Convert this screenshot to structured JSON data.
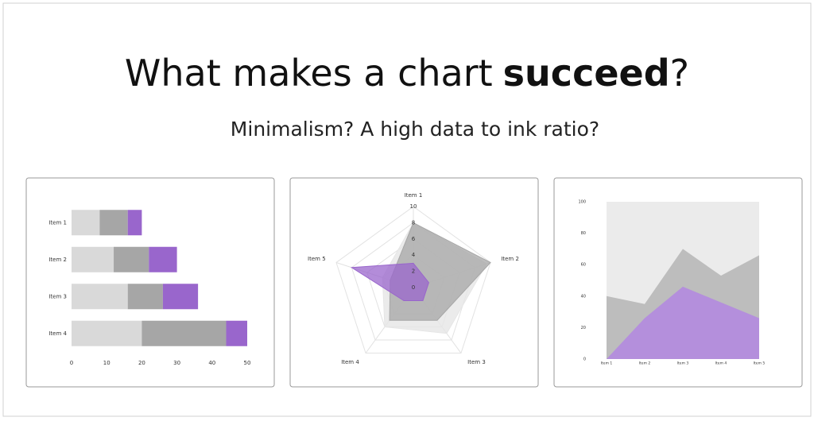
{
  "slide": {
    "title": [
      "What makes a chart",
      "succeed",
      "?"
    ],
    "subtitle": "Minimalism? A high data to ink ratio?"
  },
  "chart_data": [
    {
      "type": "bar",
      "orientation": "horizontal",
      "stacked": true,
      "categories": [
        "Item 1",
        "Item 2",
        "Item 3",
        "Item 4"
      ],
      "series": [
        {
          "color": "#d9d9d9",
          "values": [
            8,
            12,
            16,
            20
          ]
        },
        {
          "color": "#a6a6a6",
          "values": [
            8,
            10,
            10,
            24
          ]
        },
        {
          "color": "#9966cc",
          "values": [
            4,
            8,
            10,
            6
          ]
        }
      ],
      "xlim": [
        0,
        50
      ],
      "xticks": [
        0,
        10,
        20,
        30,
        40,
        50
      ]
    },
    {
      "type": "radar",
      "categories": [
        "Item 1",
        "Item 2",
        "Item 3",
        "Item 4",
        "Item 5"
      ],
      "series": [
        {
          "color": "#e6e6e6",
          "values": [
            8,
            9.5,
            7,
            6,
            4
          ]
        },
        {
          "color": "#a6a6a6",
          "values": [
            8,
            10,
            5,
            5,
            3
          ]
        },
        {
          "color": "#9966cc",
          "values": [
            3,
            2,
            2,
            2,
            8
          ]
        }
      ],
      "rlim": [
        0,
        10
      ],
      "rticks": [
        0,
        2,
        4,
        6,
        8,
        10
      ]
    },
    {
      "type": "area",
      "categories": [
        "Item 1",
        "Item 2",
        "Item 3",
        "Item 4",
        "Item 5"
      ],
      "series": [
        {
          "color": "#ebebeb",
          "values": [
            100,
            100,
            100,
            100,
            100
          ]
        },
        {
          "color": "#bdbdbd",
          "values": [
            40,
            35,
            70,
            53,
            66
          ]
        },
        {
          "color": "#b48fdc",
          "values": [
            0,
            26,
            46,
            36,
            26
          ]
        }
      ],
      "ylim": [
        0,
        100
      ],
      "yticks": [
        0,
        20,
        40,
        60,
        80,
        100
      ]
    }
  ]
}
